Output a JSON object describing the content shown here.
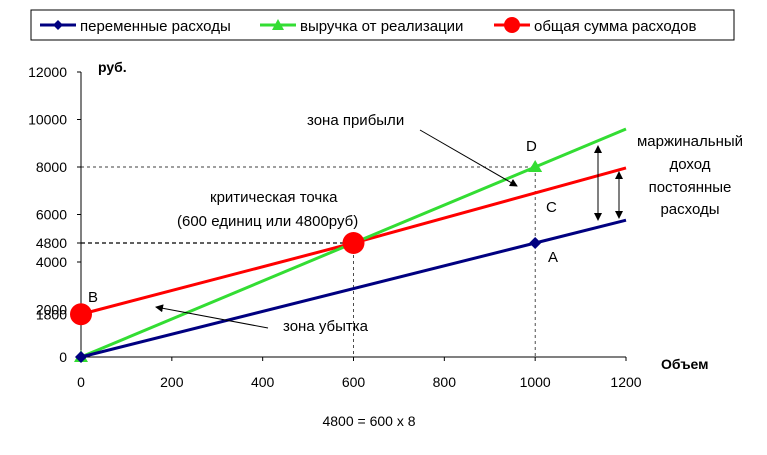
{
  "chart_data": {
    "type": "line",
    "title": "",
    "xlabel": "Объем",
    "ylabel": "руб.",
    "xlim": [
      0,
      1200
    ],
    "ylim": [
      0,
      12000
    ],
    "x_ticks": [
      0,
      200,
      400,
      600,
      800,
      1000,
      1200
    ],
    "y_ticks": [
      0,
      1800,
      2000,
      4000,
      4800,
      6000,
      8000,
      10000,
      12000
    ],
    "grid": false,
    "legend_position": "top",
    "series": [
      {
        "name": "переменные расходы",
        "color": "#000080",
        "marker": "diamond",
        "x": [
          0,
          1000,
          1200
        ],
        "y": [
          0,
          4800,
          5760
        ]
      },
      {
        "name": "выручка от реализации",
        "color": "#33dd33",
        "marker": "triangle",
        "x": [
          0,
          1000,
          1200
        ],
        "y": [
          0,
          8000,
          9600
        ]
      },
      {
        "name": "общая сумма расходов",
        "color": "#ff0000",
        "marker": "circle",
        "x": [
          0,
          600,
          1200
        ],
        "y": [
          1800,
          4800,
          7960
        ]
      }
    ],
    "annotations": {
      "point_b": "B",
      "point_a": "A",
      "point_c": "C",
      "point_d": "D",
      "profit_zone": "зона прибыли",
      "loss_zone": "зона убытка",
      "critical_point_line1": "критическая точка",
      "critical_point_line2": "(600 единиц или 4800руб)",
      "margin_label": [
        "маржинальный",
        "доход"
      ],
      "fixed_costs_label": [
        "постоянные",
        "расходы"
      ]
    },
    "formula": "4800 = 600 x 8"
  }
}
